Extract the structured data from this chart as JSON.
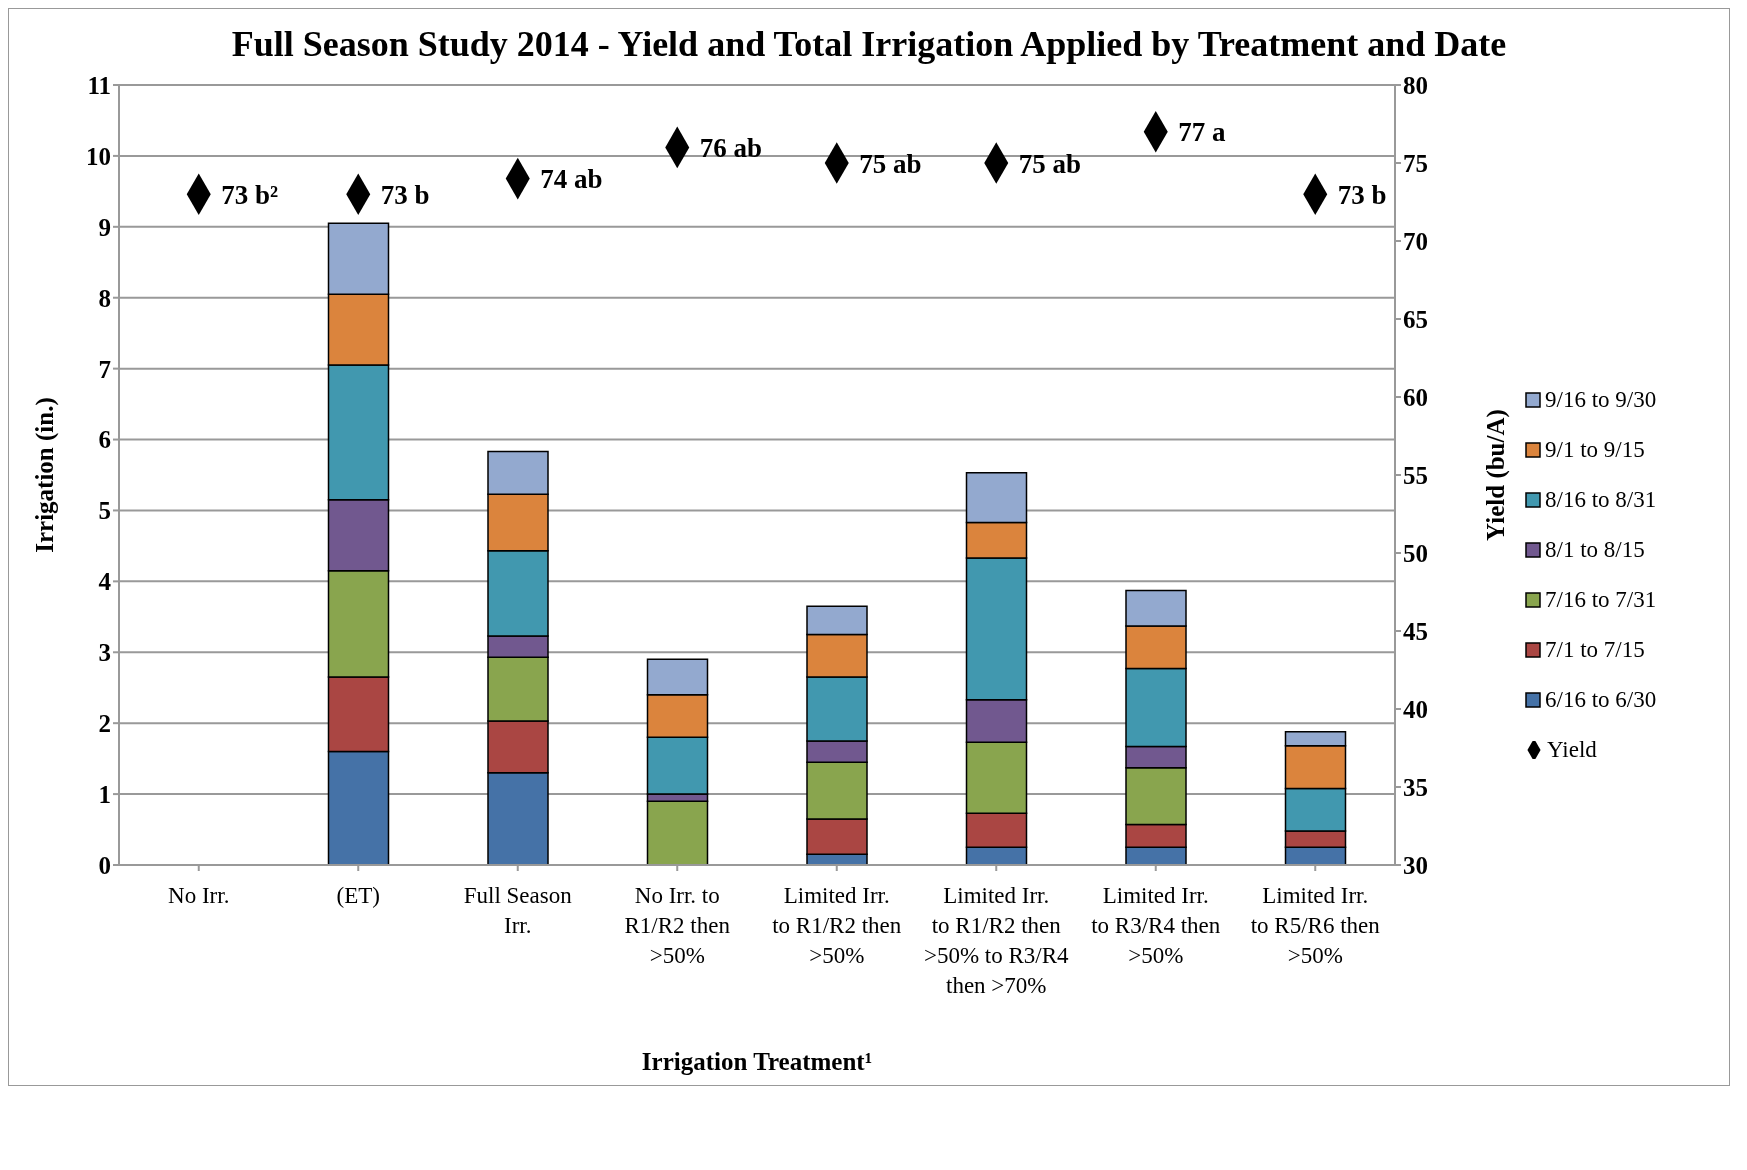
{
  "chart_data": {
    "type": "bar",
    "title": "Full Season Study 2014 - Yield and Total Irrigation Applied by Treatment and Date",
    "xlabel": "Irrigation Treatment¹",
    "ylabel": "Irrigation (in.)",
    "y2label": "Yield (bu/A)",
    "categories": [
      "No Irr.",
      "(ET)",
      "Full Season Irr.",
      "No Irr. to R1/R2 then >50%",
      "Limited Irr. to R1/R2 then >50%",
      "Limited Irr. to R1/R2 then >50% to R3/R4 then >70%",
      "Limited Irr. to R3/R4 then >50%",
      "Limited Irr. to R5/R6 then >50%"
    ],
    "stacked": true,
    "series": [
      {
        "name": "6/16 to 6/30",
        "color": "#4572a7",
        "values": [
          0,
          1.6,
          1.3,
          0,
          0.15,
          0.25,
          0.25,
          0.25
        ]
      },
      {
        "name": "7/1 to 7/15",
        "color": "#aa4643",
        "values": [
          0,
          1.05,
          0.73,
          0,
          0.5,
          0.48,
          0.32,
          0.23
        ]
      },
      {
        "name": "7/16 to 7/31",
        "color": "#89a54e",
        "values": [
          0,
          1.5,
          0.9,
          0.9,
          0.8,
          1.0,
          0.8,
          0
        ]
      },
      {
        "name": "8/1 to 8/15",
        "color": "#71588f",
        "values": [
          0,
          1.0,
          0.3,
          0.1,
          0.3,
          0.6,
          0.3,
          0
        ]
      },
      {
        "name": "8/16 to 8/31",
        "color": "#4198af",
        "values": [
          0,
          1.9,
          1.2,
          0.8,
          0.9,
          2.0,
          1.1,
          0.6
        ]
      },
      {
        "name": "9/1 to 9/15",
        "color": "#db843d",
        "values": [
          0,
          1.0,
          0.8,
          0.6,
          0.6,
          0.5,
          0.6,
          0.6
        ]
      },
      {
        "name": "9/16 to 9/30",
        "color": "#93a9cf",
        "values": [
          0,
          1.0,
          0.6,
          0.5,
          0.4,
          0.7,
          0.5,
          0.2
        ]
      },
      {
        "name": "Yield",
        "type": "scatter",
        "axis": "y2",
        "marker": "diamond",
        "color": "#000000",
        "values": [
          73,
          73,
          74,
          76,
          75,
          75,
          77,
          73
        ],
        "value_labels": [
          "73 b²",
          "73 b",
          "74 ab",
          "76 ab",
          "75 ab",
          "75 ab",
          "77 a",
          "73 b"
        ]
      }
    ],
    "ylim": [
      0,
      11
    ],
    "yticks": [
      0,
      1,
      2,
      3,
      4,
      5,
      6,
      7,
      8,
      9,
      10,
      11
    ],
    "y2lim": [
      30,
      80
    ],
    "y2ticks": [
      30,
      35,
      40,
      45,
      50,
      55,
      60,
      65,
      70,
      75,
      80
    ],
    "grid": "y",
    "legend": "right"
  }
}
